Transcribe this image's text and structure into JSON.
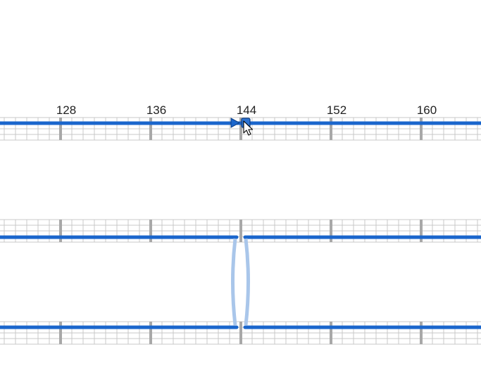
{
  "ruler": {
    "labels": [
      "128",
      "136",
      "144",
      "152",
      "160"
    ]
  },
  "colors": {
    "track_line": "#1a66cc",
    "grid_minor": "#c8c8c8",
    "grid_major": "#a8a8a8",
    "crossfade": "#a9c6ea",
    "playhead": "#1a66cc"
  },
  "tracks": [
    {
      "name": "track-top",
      "split": false
    },
    {
      "name": "track-middle",
      "split": true
    },
    {
      "name": "track-bottom",
      "split": true
    }
  ],
  "icons": {
    "playhead": "triangle-right-icon",
    "cursor": "mouse-pointer-icon",
    "handle": "clip-handle-icon"
  }
}
